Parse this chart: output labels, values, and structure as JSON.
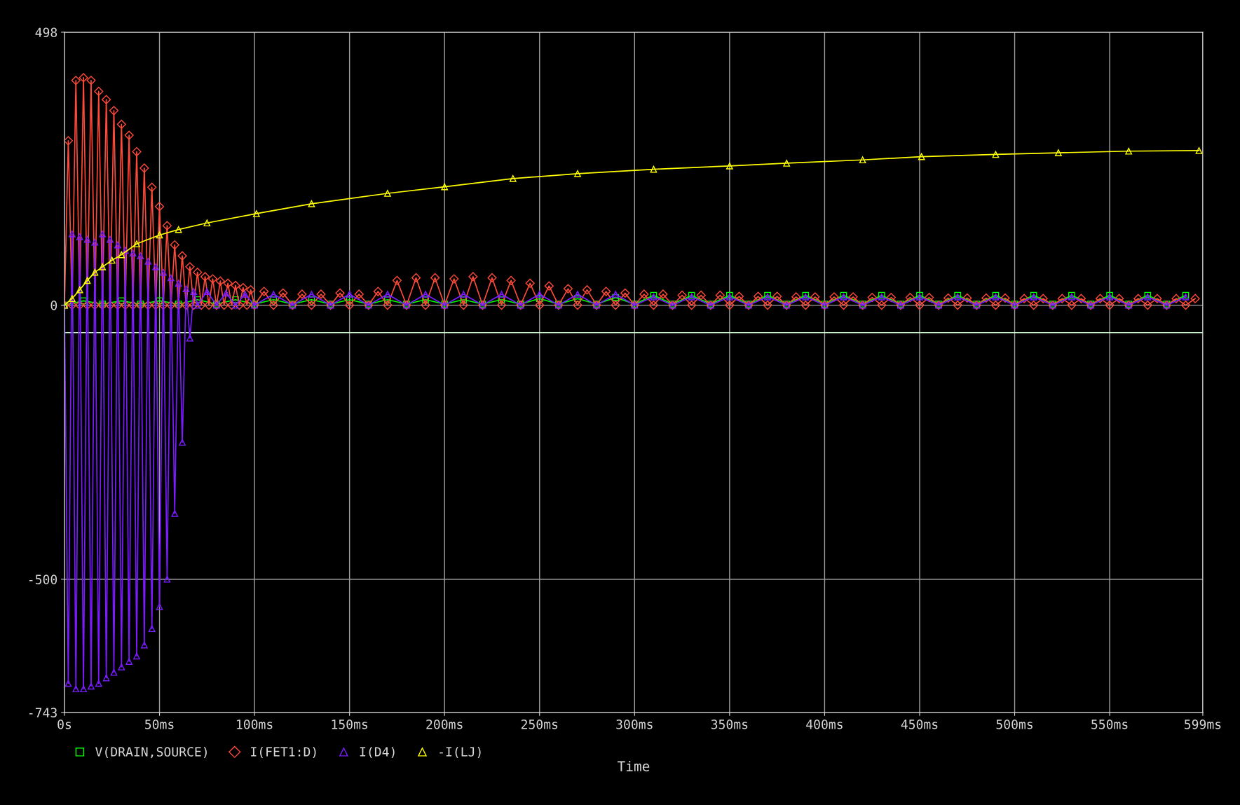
{
  "chart_data": {
    "type": "line",
    "xlabel": "Time",
    "xlim": [
      0,
      599
    ],
    "ylim": [
      -743,
      498
    ],
    "xticks": [
      {
        "value": 0,
        "label": "0s"
      },
      {
        "value": 50,
        "label": "50ms"
      },
      {
        "value": 100,
        "label": "100ms"
      },
      {
        "value": 150,
        "label": "150ms"
      },
      {
        "value": 200,
        "label": "200ms"
      },
      {
        "value": 250,
        "label": "250ms"
      },
      {
        "value": 300,
        "label": "300ms"
      },
      {
        "value": 350,
        "label": "350ms"
      },
      {
        "value": 400,
        "label": "400ms"
      },
      {
        "value": 450,
        "label": "450ms"
      },
      {
        "value": 500,
        "label": "500ms"
      },
      {
        "value": 550,
        "label": "550ms"
      },
      {
        "value": 599,
        "label": "599ms"
      }
    ],
    "yticks": [
      -743,
      -500,
      0,
      498
    ],
    "grid": true,
    "legend": "bottom",
    "line_style": "solid",
    "ref_lines": [
      {
        "axis": "y",
        "value": -50,
        "color": "#ccffcc"
      }
    ],
    "series": [
      {
        "name": "V(DRAIN,SOURCE)",
        "color": "#00ff00",
        "marker": "square",
        "x": [
          0,
          10,
          20,
          30,
          40,
          50,
          60,
          70,
          80,
          90,
          100,
          110,
          120,
          130,
          140,
          150,
          160,
          170,
          180,
          190,
          200,
          210,
          220,
          230,
          240,
          250,
          260,
          270,
          280,
          290,
          300,
          310,
          320,
          330,
          340,
          350,
          360,
          370,
          380,
          390,
          400,
          410,
          420,
          430,
          440,
          450,
          460,
          470,
          480,
          490,
          500,
          510,
          520,
          530,
          540,
          550,
          560,
          570,
          580,
          590
        ],
        "values": [
          0,
          8,
          2,
          8,
          2,
          8,
          2,
          10,
          2,
          10,
          2,
          10,
          2,
          10,
          2,
          10,
          2,
          10,
          2,
          10,
          2,
          10,
          2,
          10,
          2,
          12,
          2,
          12,
          2,
          14,
          2,
          18,
          2,
          18,
          2,
          18,
          2,
          18,
          2,
          18,
          2,
          18,
          2,
          18,
          2,
          18,
          2,
          18,
          2,
          18,
          2,
          18,
          2,
          18,
          2,
          18,
          2,
          18,
          2,
          18
        ]
      },
      {
        "name": "I(FET1:D)",
        "color": "#ff4a3a",
        "marker": "diamond",
        "x": [
          0,
          2,
          4,
          6,
          8,
          10,
          12,
          14,
          16,
          18,
          20,
          22,
          24,
          26,
          28,
          30,
          32,
          34,
          36,
          38,
          40,
          42,
          44,
          46,
          48,
          50,
          52,
          54,
          56,
          58,
          60,
          62,
          64,
          66,
          68,
          70,
          72,
          74,
          76,
          78,
          80,
          82,
          84,
          86,
          88,
          90,
          92,
          94,
          96,
          98,
          100,
          105,
          110,
          115,
          120,
          125,
          130,
          135,
          140,
          145,
          150,
          155,
          160,
          165,
          170,
          175,
          180,
          185,
          190,
          195,
          200,
          205,
          210,
          215,
          220,
          225,
          230,
          235,
          240,
          245,
          250,
          255,
          260,
          265,
          270,
          275,
          280,
          285,
          290,
          295,
          300,
          305,
          310,
          315,
          320,
          325,
          330,
          335,
          340,
          345,
          350,
          355,
          360,
          365,
          370,
          375,
          380,
          385,
          390,
          395,
          400,
          405,
          410,
          415,
          420,
          425,
          430,
          435,
          440,
          445,
          450,
          455,
          460,
          465,
          470,
          475,
          480,
          485,
          490,
          495,
          500,
          505,
          510,
          515,
          520,
          525,
          530,
          535,
          540,
          545,
          550,
          555,
          560,
          565,
          570,
          575,
          580,
          585,
          590,
          595
        ],
        "values": [
          0,
          300,
          0,
          410,
          0,
          415,
          0,
          410,
          0,
          390,
          0,
          375,
          0,
          355,
          0,
          330,
          0,
          310,
          0,
          280,
          0,
          250,
          0,
          215,
          0,
          180,
          0,
          145,
          0,
          110,
          0,
          90,
          0,
          70,
          0,
          60,
          0,
          52,
          0,
          48,
          0,
          44,
          0,
          40,
          0,
          36,
          0,
          32,
          0,
          28,
          0,
          25,
          0,
          22,
          0,
          20,
          0,
          20,
          0,
          22,
          0,
          20,
          0,
          25,
          0,
          45,
          0,
          50,
          0,
          50,
          0,
          48,
          0,
          52,
          0,
          50,
          0,
          45,
          0,
          40,
          0,
          35,
          0,
          30,
          0,
          28,
          0,
          25,
          0,
          22,
          0,
          20,
          0,
          20,
          0,
          18,
          0,
          18,
          0,
          18,
          0,
          16,
          0,
          16,
          0,
          16,
          0,
          15,
          0,
          15,
          0,
          15,
          0,
          15,
          0,
          14,
          0,
          14,
          0,
          14,
          0,
          14,
          0,
          13,
          0,
          13,
          0,
          13,
          0,
          13,
          0,
          12,
          0,
          12,
          0,
          12,
          0,
          12,
          0,
          12,
          0,
          12,
          0,
          12,
          0,
          12,
          0,
          12,
          0,
          12
        ]
      },
      {
        "name": "I(D4)",
        "color": "#7a1cff",
        "marker": "triangle",
        "x": [
          0,
          2,
          4,
          6,
          8,
          10,
          12,
          14,
          16,
          18,
          20,
          22,
          24,
          26,
          28,
          30,
          32,
          34,
          36,
          38,
          40,
          42,
          44,
          46,
          48,
          50,
          52,
          54,
          56,
          58,
          60,
          62,
          64,
          66,
          68,
          70,
          75,
          80,
          85,
          90,
          95,
          100,
          110,
          120,
          130,
          140,
          150,
          160,
          170,
          180,
          190,
          200,
          210,
          220,
          230,
          240,
          250,
          260,
          270,
          280,
          290,
          300,
          310,
          320,
          330,
          340,
          350,
          360,
          370,
          380,
          390,
          400,
          410,
          420,
          430,
          440,
          450,
          460,
          470,
          480,
          490,
          500,
          510,
          520,
          530,
          540,
          550,
          560,
          570,
          580,
          590
        ],
        "values": [
          0,
          -690,
          130,
          -700,
          125,
          -700,
          120,
          -695,
          115,
          -690,
          130,
          -680,
          120,
          -670,
          110,
          -660,
          100,
          -650,
          95,
          -640,
          90,
          -620,
          80,
          -590,
          70,
          -550,
          60,
          -500,
          50,
          -380,
          40,
          -250,
          30,
          -60,
          25,
          0,
          25,
          0,
          22,
          0,
          20,
          0,
          20,
          0,
          20,
          0,
          20,
          0,
          20,
          0,
          20,
          0,
          20,
          0,
          20,
          0,
          20,
          0,
          20,
          0,
          20,
          0,
          15,
          0,
          15,
          0,
          15,
          0,
          15,
          0,
          15,
          0,
          15,
          0,
          15,
          0,
          15,
          0,
          15,
          0,
          15,
          0,
          15,
          0,
          15,
          0,
          15,
          0,
          15,
          0,
          15
        ]
      },
      {
        "name": "-I(LJ)",
        "color": "#ffff00",
        "marker": "triangle",
        "x": [
          0,
          4,
          8,
          12,
          16,
          20,
          25,
          30,
          38,
          50,
          60,
          75,
          101,
          130,
          170,
          200,
          236,
          270,
          310,
          350,
          380,
          420,
          451,
          490,
          523,
          560,
          597
        ],
        "values": [
          0,
          12,
          28,
          45,
          60,
          70,
          82,
          92,
          112,
          128,
          138,
          150,
          167,
          185,
          204,
          216,
          231,
          240,
          248,
          254,
          259,
          265,
          271,
          275,
          278,
          281,
          282
        ]
      }
    ]
  }
}
